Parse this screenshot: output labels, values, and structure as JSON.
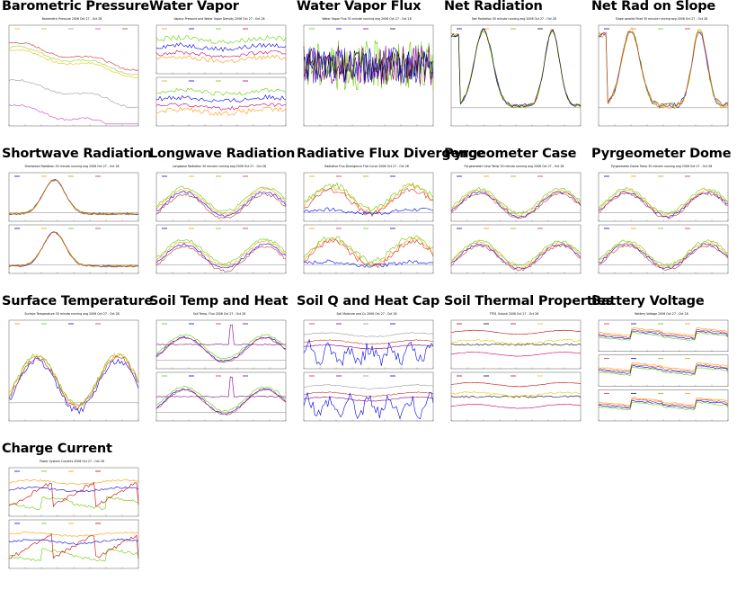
{
  "tiles": [
    {
      "title": "Barometric Pressure",
      "chart_title": "Barometric Pressure 2006 Oct 27 - Oct 28",
      "panels": 1,
      "series": [
        {
          "color": "#e8c400",
          "base": 0.75,
          "shape": "press",
          "noise": 0.01
        },
        {
          "color": "#9acd32",
          "base": 0.78,
          "shape": "press",
          "noise": 0.01
        },
        {
          "color": "#9a9a9a",
          "base": 0.45,
          "shape": "press",
          "noise": 0.01
        },
        {
          "color": "#d040c0",
          "base": 0.2,
          "shape": "press",
          "noise": 0.01
        },
        {
          "color": "#cc3333",
          "base": 0.82,
          "shape": "press",
          "noise": 0.01
        }
      ]
    },
    {
      "title": "Water Vapor",
      "chart_title": "Vapour Pressure and Water Vapor Density 2006 Oct 27 - Oct 28",
      "panels": 2,
      "series": [
        {
          "color": "#ff9900",
          "base": 0.3,
          "shape": "flat",
          "noise": 0.05
        },
        {
          "color": "#0000ee",
          "base": 0.55,
          "shape": "flat",
          "noise": 0.05
        },
        {
          "color": "#66cc00",
          "base": 0.7,
          "shape": "flat",
          "noise": 0.05
        },
        {
          "color": "#cc0066",
          "base": 0.4,
          "shape": "flat",
          "noise": 0.04
        }
      ]
    },
    {
      "title": "Water Vapor Flux",
      "chart_title": "Water Vapor Flux 30 minute running avg 2006 Oct 27 - Oct 28",
      "panels": 1,
      "series": [
        {
          "color": "#66cc00",
          "base": 0.6,
          "shape": "noisy",
          "noise": 0.25
        },
        {
          "color": "#0000ee",
          "base": 0.6,
          "shape": "noisy",
          "noise": 0.18
        },
        {
          "color": "#800080",
          "base": 0.6,
          "shape": "noisy",
          "noise": 0.2
        },
        {
          "color": "#111111",
          "base": 0.6,
          "shape": "noisy",
          "noise": 0.15
        }
      ]
    },
    {
      "title": "Net Radiation",
      "chart_title": "Net Radiation 30 minute running avg 2006 Oct 27 - Oct 28",
      "panels": 1,
      "series": [
        {
          "color": "#0000ee",
          "base": 0.2,
          "shape": "net",
          "noise": 0.02
        },
        {
          "color": "#ff9900",
          "base": 0.2,
          "shape": "net",
          "noise": 0.02
        },
        {
          "color": "#66cc00",
          "base": 0.2,
          "shape": "net",
          "noise": 0.02
        },
        {
          "color": "#111111",
          "base": 0.2,
          "shape": "net",
          "noise": 0.02
        }
      ]
    },
    {
      "title": "Net Rad on Slope",
      "chart_title": "Slope parallel Rnet 30 minute running avg 2006 Oct 27 - Oct 28",
      "panels": 1,
      "series": [
        {
          "color": "#0000ee",
          "base": 0.2,
          "shape": "net",
          "noise": 0.03
        },
        {
          "color": "#ff9900",
          "base": 0.2,
          "shape": "net",
          "noise": 0.03
        },
        {
          "color": "#66cc00",
          "base": 0.2,
          "shape": "net",
          "noise": 0.03
        },
        {
          "color": "#cc3333",
          "base": 0.2,
          "shape": "net",
          "noise": 0.03
        }
      ]
    },
    {
      "title": "Shortwave Radiation",
      "chart_title": "Shortwave Radiation 30 minute running avg 2006 Oct 27 - Oct 28",
      "panels": 2,
      "series": [
        {
          "color": "#0000ee",
          "base": 0.15,
          "shape": "day",
          "noise": 0.02
        },
        {
          "color": "#ff9900",
          "base": 0.15,
          "shape": "day",
          "noise": 0.02
        },
        {
          "color": "#66cc00",
          "base": 0.15,
          "shape": "day",
          "noise": 0.02
        },
        {
          "color": "#cc3333",
          "base": 0.15,
          "shape": "day",
          "noise": 0.02
        }
      ]
    },
    {
      "title": "Longwave Radiation",
      "chart_title": "Longwave Radiation 30 minute running avg 2006 Oct 27 - Oct 28",
      "panels": 2,
      "series": [
        {
          "color": "#0000ee",
          "base": 0.35,
          "shape": "wave",
          "noise": 0.03
        },
        {
          "color": "#ff9900",
          "base": 0.4,
          "shape": "wave",
          "noise": 0.03
        },
        {
          "color": "#66cc00",
          "base": 0.45,
          "shape": "wave",
          "noise": 0.03
        },
        {
          "color": "#cc3333",
          "base": 0.3,
          "shape": "wave",
          "noise": 0.03
        }
      ]
    },
    {
      "title": "Radiative Flux Divergence",
      "chart_title": "Radiative Flux Divergence Flat Curve 2006 Oct 27 - Oct 28",
      "panels": 2,
      "series": [
        {
          "color": "#ff9900",
          "base": 0.45,
          "shape": "wave",
          "noise": 0.06
        },
        {
          "color": "#cc3333",
          "base": 0.4,
          "shape": "wave",
          "noise": 0.06
        },
        {
          "color": "#66cc00",
          "base": 0.5,
          "shape": "wave",
          "noise": 0.06
        },
        {
          "color": "#0000ee",
          "base": 0.2,
          "shape": "flat",
          "noise": 0.04
        }
      ]
    },
    {
      "title": "Pyrgeometer Case",
      "chart_title": "Pyrgeometer Case Temp 30 minute running avg 2006 Oct 27 - Oct 28",
      "panels": 2,
      "series": [
        {
          "color": "#0000ee",
          "base": 0.35,
          "shape": "wave",
          "noise": 0.03
        },
        {
          "color": "#ff9900",
          "base": 0.38,
          "shape": "wave",
          "noise": 0.03
        },
        {
          "color": "#66cc00",
          "base": 0.42,
          "shape": "wave",
          "noise": 0.03
        },
        {
          "color": "#cc3333",
          "base": 0.32,
          "shape": "wave",
          "noise": 0.03
        }
      ]
    },
    {
      "title": "Pyrgeometer Dome",
      "chart_title": "Pyrgeometer Dome Temp 30 minute running avg 2006 Oct 27 - Oct 28",
      "panels": 2,
      "series": [
        {
          "color": "#0000ee",
          "base": 0.35,
          "shape": "wave",
          "noise": 0.03
        },
        {
          "color": "#ff9900",
          "base": 0.38,
          "shape": "wave",
          "noise": 0.03
        },
        {
          "color": "#66cc00",
          "base": 0.42,
          "shape": "wave",
          "noise": 0.03
        },
        {
          "color": "#cc3333",
          "base": 0.32,
          "shape": "wave",
          "noise": 0.03
        }
      ]
    },
    {
      "title": "Surface Temperature",
      "chart_title": "Surface Temperature 30 minute running avg 2006 Oct 27 - Oct 28",
      "panels": 1,
      "series": [
        {
          "color": "#ff9900",
          "base": 0.4,
          "shape": "wave",
          "noise": 0.03
        },
        {
          "color": "#66cc00",
          "base": 0.4,
          "shape": "wave",
          "noise": 0.03
        },
        {
          "color": "#0000ee",
          "base": 0.35,
          "shape": "wave",
          "noise": 0.03
        },
        {
          "color": "#cc3333",
          "base": 0.38,
          "shape": "wave",
          "noise": 0.03
        }
      ]
    },
    {
      "title": "Soil Temp and Heat",
      "chart_title": "Soil Temp, Flux 2006 Oct 27 - Oct 28",
      "panels": 2,
      "series": [
        {
          "color": "#66cc00",
          "base": 0.45,
          "shape": "wave",
          "noise": 0.02
        },
        {
          "color": "#0000ee",
          "base": 0.4,
          "shape": "wave",
          "noise": 0.02
        },
        {
          "color": "#cc3333",
          "base": 0.38,
          "shape": "wave",
          "noise": 0.02
        },
        {
          "color": "#800080",
          "base": 0.5,
          "shape": "spike",
          "noise": 0.01
        }
      ]
    },
    {
      "title": "Soil Q and Heat Cap",
      "chart_title": "Soil Moisture and Cv 2006 Oct 27 - Oct 28",
      "panels": 2,
      "series": [
        {
          "color": "#cc3333",
          "base": 0.55,
          "shape": "flat",
          "noise": 0.01
        },
        {
          "color": "#800080",
          "base": 0.45,
          "shape": "flat",
          "noise": 0.01
        },
        {
          "color": "#9a9a9a",
          "base": 0.7,
          "shape": "flat",
          "noise": 0.01
        },
        {
          "color": "#0000ee",
          "base": 0.3,
          "shape": "zigzag",
          "noise": 0.15
        }
      ]
    },
    {
      "title": "Soil Thermal Properties",
      "chart_title": "TP01 Output 2006 Oct 27 - Oct 28",
      "panels": 2,
      "series": [
        {
          "color": "#cc0000",
          "base": 0.75,
          "shape": "flat",
          "noise": 0.005
        },
        {
          "color": "#111111",
          "base": 0.5,
          "shape": "bars",
          "noise": 0.02
        },
        {
          "color": "#cc0066",
          "base": 0.3,
          "shape": "flat",
          "noise": 0.005
        },
        {
          "color": "#e8c400",
          "base": 0.55,
          "shape": "flat",
          "noise": 0.02
        }
      ]
    },
    {
      "title": "Battery Voltage",
      "chart_title": "Battery Voltage 2006 Oct 27 - Oct 28",
      "panels": 3,
      "series": [
        {
          "color": "#cc3333",
          "base": 0.6,
          "shape": "step",
          "noise": 0.02
        },
        {
          "color": "#0000ee",
          "base": 0.55,
          "shape": "step",
          "noise": 0.02
        },
        {
          "color": "#66cc00",
          "base": 0.5,
          "shape": "step",
          "noise": 0.02
        },
        {
          "color": "#ff9900",
          "base": 0.65,
          "shape": "step",
          "noise": 0.02
        }
      ]
    },
    {
      "title": "Charge Current",
      "chart_title": "Power System Currents 2006 Oct 27 - Oct 28",
      "panels": 2,
      "series": [
        {
          "color": "#0000ee",
          "base": 0.55,
          "shape": "flat",
          "noise": 0.02
        },
        {
          "color": "#66cc00",
          "base": 0.3,
          "shape": "step",
          "noise": 0.03
        },
        {
          "color": "#ff9900",
          "base": 0.7,
          "shape": "flat",
          "noise": 0.02
        },
        {
          "color": "#cc0000",
          "base": 0.2,
          "shape": "ramp",
          "noise": 0.04
        }
      ]
    }
  ]
}
